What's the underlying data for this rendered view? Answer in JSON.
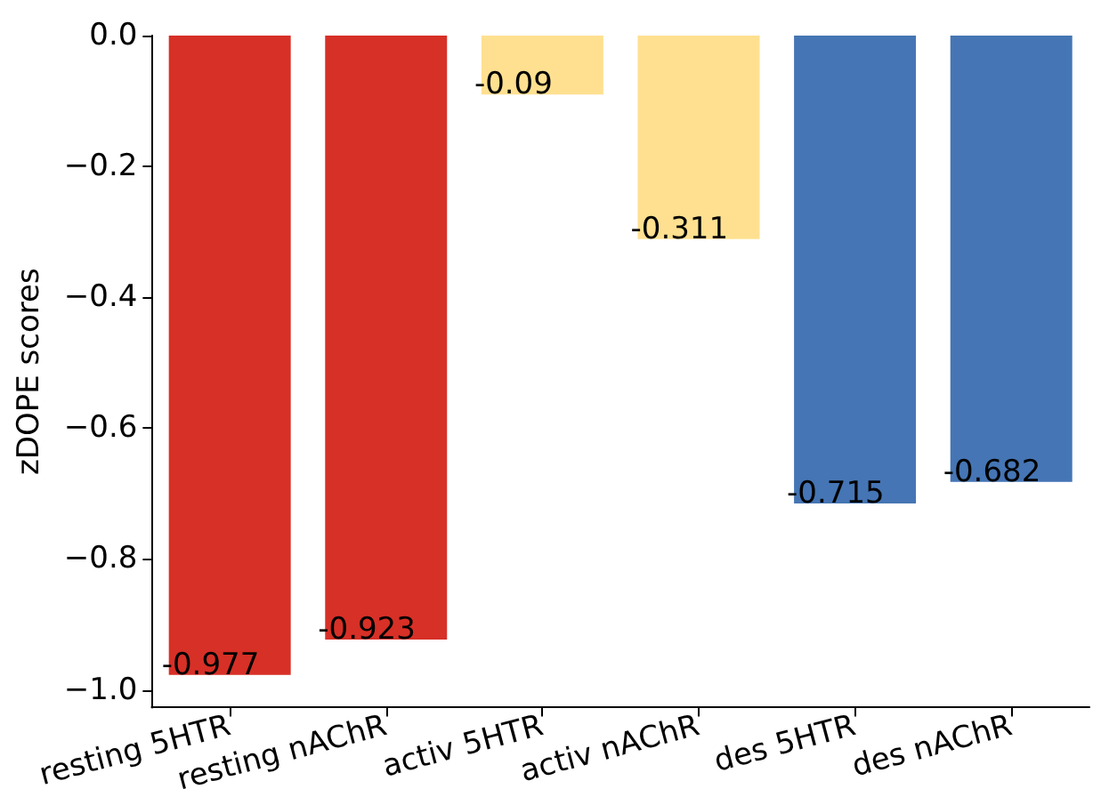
{
  "chart_data": {
    "type": "bar",
    "ylabel": "zDOPE scores",
    "categories": [
      "resting 5HTR",
      "resting nAChR",
      "activ 5HTR",
      "activ nAChR",
      "des 5HTR",
      "des nAChR"
    ],
    "values": [
      -0.977,
      -0.923,
      -0.09,
      -0.311,
      -0.715,
      -0.682
    ],
    "colors": [
      "#d73027",
      "#d73027",
      "#fee090",
      "#fee090",
      "#4575b4",
      "#4575b4"
    ],
    "ylim": [
      -1.027,
      0
    ],
    "yticks": [
      {
        "value": 0,
        "label": "0.0"
      },
      {
        "value": -0.2,
        "label": "−0.2"
      },
      {
        "value": -0.4,
        "label": "−0.4"
      },
      {
        "value": -0.6,
        "label": "−0.6"
      },
      {
        "value": -0.8,
        "label": "−0.8"
      },
      {
        "value": -1.0,
        "label": "−1.0"
      }
    ],
    "data_labels": true,
    "grid": false
  }
}
